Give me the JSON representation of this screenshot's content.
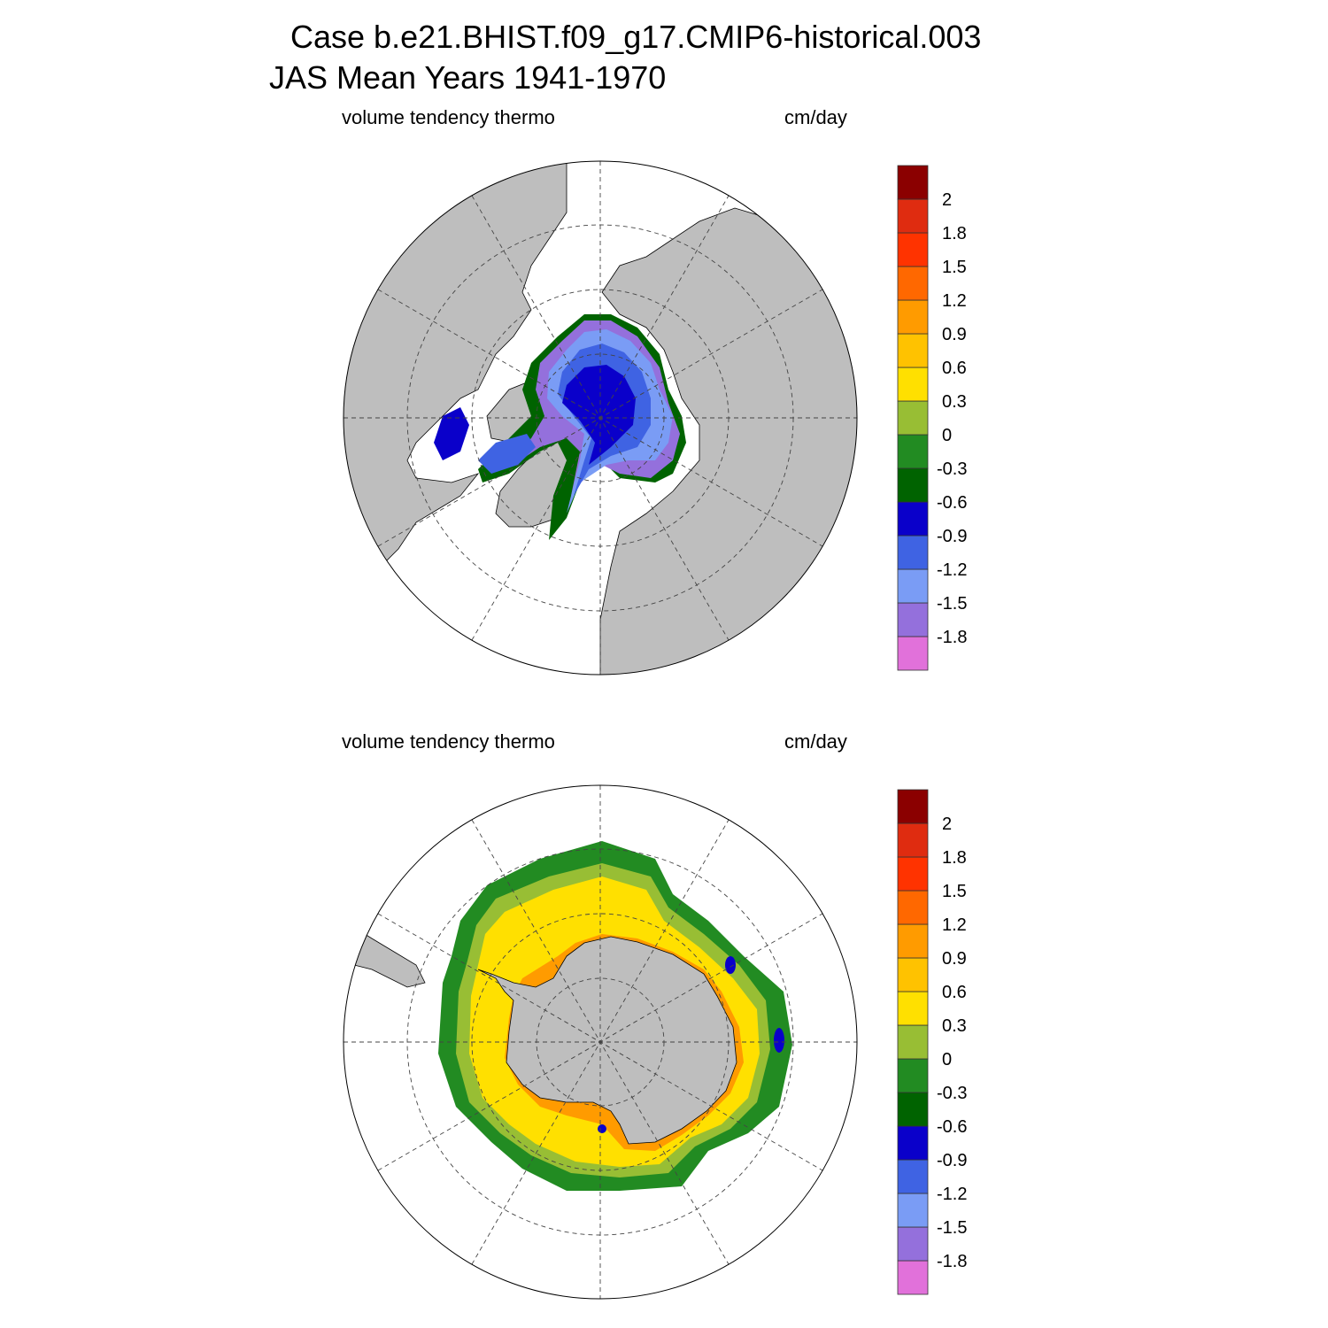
{
  "title": {
    "line1": "Case b.e21.BHIST.f09_g17.CMIP6-historical.003",
    "line2": "JAS Mean   Years 1941-1970"
  },
  "colorbar": {
    "colors": [
      "#E171DA",
      "#9470DC",
      "#7A9CF5",
      "#3F63E3",
      "#0A00CA",
      "#006300",
      "#228B22",
      "#98BE34",
      "#FFE000",
      "#FFC200",
      "#FF9B00",
      "#FF6800",
      "#FF3300",
      "#DF2C10",
      "#8B0000"
    ],
    "labels": [
      "-1.8",
      "-1.5",
      "-1.2",
      "-0.9",
      "-0.6",
      "-0.3",
      "0",
      "0.3",
      "0.6",
      "0.9",
      "1.2",
      "1.5",
      "1.8",
      "2"
    ]
  },
  "panels": [
    {
      "id": "north",
      "left_label": "volume tendency thermo",
      "right_label": "cm/day",
      "hemisphere": "Northern Hemisphere polar stereographic"
    },
    {
      "id": "south",
      "left_label": "volume tendency thermo",
      "right_label": "cm/day",
      "hemisphere": "Southern Hemisphere polar stereographic"
    }
  ]
}
